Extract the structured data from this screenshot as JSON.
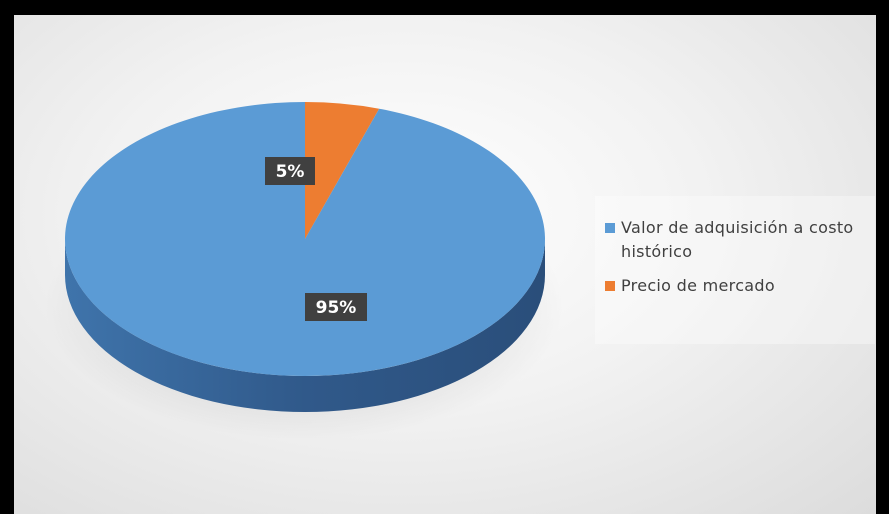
{
  "chart_data": {
    "type": "pie",
    "style": "3d",
    "categories": [
      "Valor de adquisición a costo histórico",
      "Precio de mercado"
    ],
    "values": [
      95,
      5
    ],
    "data_labels": [
      "95%",
      "5%"
    ],
    "colors": [
      "#5b9bd5",
      "#ed7d31"
    ],
    "legend_position": "right",
    "title": ""
  }
}
